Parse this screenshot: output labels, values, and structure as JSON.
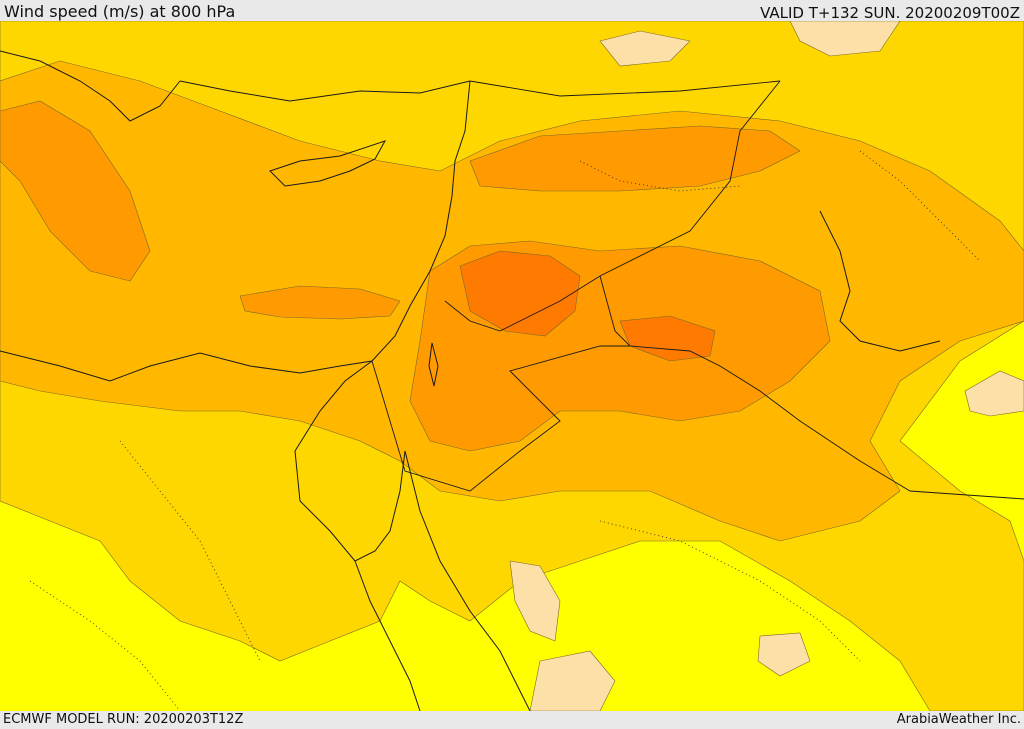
{
  "header": {
    "title": "Wind speed (m/s) at 800 hPa",
    "valid": "VALID T+132 SUN. 20200209T00Z"
  },
  "footer": {
    "model_run": "ECMWF MODEL RUN: 20200203T12Z",
    "credit": "ArabiaWeather Inc."
  },
  "map": {
    "variable": "wind speed",
    "level": "800 hPa",
    "colors": {
      "lightest": "#fde0a8",
      "yellow": "#ffff00",
      "gold": "#ffd700",
      "amber": "#ffb700",
      "orange": "#ff9a00",
      "dark_orange": "#ff7a00"
    }
  }
}
